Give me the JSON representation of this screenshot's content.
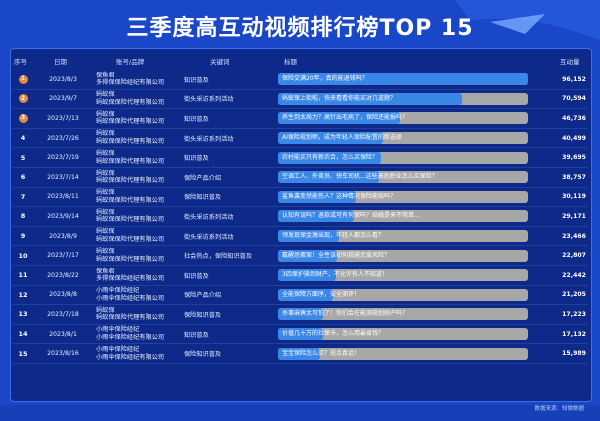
{
  "title": "三季度高互动视频排行榜TOP 15",
  "source": "数据来源：知微数据",
  "colors": {
    "background": "#1a47c8",
    "panel": "#0d2a8a",
    "bar_fill": "#3b87e8",
    "bar_track": "#a7a7a7",
    "top3_badge": "#e5893a"
  },
  "headers": {
    "rank": "序号",
    "date": "日期",
    "account": "账号/品牌",
    "keyword": "关键词",
    "topic": "标题",
    "value": "互动量"
  },
  "chart_data": {
    "type": "bar",
    "orientation": "horizontal",
    "title": "三季度高互动视频排行榜TOP 15",
    "xlim": [
      0,
      96152
    ],
    "rows": [
      {
        "rank": "1",
        "date": "2023/8/3",
        "account": [
          "保鱼君",
          "多得保保险经纪有限公司"
        ],
        "keyword": "知识普及",
        "topic": "保险交满20年，真的能退钱吗？",
        "value": 96152,
        "label": "96,152"
      },
      {
        "rank": "2",
        "date": "2023/9/7",
        "account": [
          "蚂蚁保",
          "蚂蚁保保险代理有限公司"
        ],
        "keyword": "街头采访系列活动",
        "topic": "蚂蚁保上街啦，快来看看你能买对几道题？",
        "value": 70594,
        "label": "70,594"
      },
      {
        "rank": "3",
        "date": "2023/7/13",
        "account": [
          "蚂蚁保",
          "蚂蚁保保险代理有限公司"
        ],
        "keyword": "知识普及",
        "topic": "养生到太局力？高针出毛病了，保险还能报吗？",
        "value": 46736,
        "label": "46,736"
      },
      {
        "rank": "4",
        "date": "2023/7/26",
        "account": [
          "蚂蚁保",
          "蚂蚁保保险代理有限公司"
        ],
        "keyword": "街头采访系列活动",
        "topic": "AI保险规划师，成为年轻人保险配置的新选择",
        "value": 40499,
        "label": "40,499"
      },
      {
        "rank": "5",
        "date": "2023/7/19",
        "account": [
          "蚂蚁保",
          "蚂蚁保保险代理有限公司"
        ],
        "keyword": "知识普及",
        "topic": "农村能买只有新农合，怎么买保险？",
        "value": 39695,
        "label": "39,695"
      },
      {
        "rank": "6",
        "date": "2023/7/14",
        "account": [
          "蚂蚁保",
          "蚂蚁保保险代理有限公司"
        ],
        "keyword": "保险产品介绍",
        "topic": "空调工人、外卖员、快车司机...这些高危职业怎么买保险？",
        "value": 38757,
        "label": "38,757"
      },
      {
        "rank": "7",
        "date": "2023/8/11",
        "account": [
          "蚂蚁保",
          "蚂蚁保保险代理有限公司"
        ],
        "keyword": "保险知识普及",
        "topic": "鲨鱼袭变然能伤人？这种情况保险能赔吗？",
        "value": 30119,
        "label": "30,119"
      },
      {
        "rank": "8",
        "date": "2023/9/14",
        "account": [
          "蚂蚁保",
          "蚂蚁保保险代理有限公司"
        ],
        "keyword": "街头采访系列活动",
        "topic": "认知有误吗？退款或可有何保吗？结婚是来不简单...",
        "value": 29171,
        "label": "29,171"
      },
      {
        "rank": "9",
        "date": "2023/8/9",
        "account": [
          "蚂蚁保",
          "蚂蚁保保险代理有限公司"
        ],
        "keyword": "街头采访系列活动",
        "topic": "领发现保金激出现，年轻人都怎么看？",
        "value": 23466,
        "label": "23,466"
      },
      {
        "rank": "10",
        "date": "2023/7/17",
        "account": [
          "蚂蚁保",
          "蚂蚁保保险代理有限公司"
        ],
        "keyword": "社会热点，保险知识普及",
        "topic": "戴醒恐蛋案！全性该如何规避恋爱风险？",
        "value": 22807,
        "label": "22,807"
      },
      {
        "rank": "11",
        "date": "2023/8/22",
        "account": [
          "保鱼君",
          "多得保保险经纪有限公司"
        ],
        "keyword": "知识普及",
        "topic": "3四保护操到财产，不允许有人不知道！",
        "value": 22442,
        "label": "22,442"
      },
      {
        "rank": "12",
        "date": "2023/8/8",
        "account": [
          "小雨伞保险经纪",
          "小雨伞保险经纪有限公司"
        ],
        "keyword": "保险产品介绍",
        "topic": "全能保障方面序，安全测评！",
        "value": 21205,
        "label": "21,205"
      },
      {
        "rank": "13",
        "date": "2023/7/18",
        "account": [
          "蚂蚁保",
          "蚂蚁保保险代理有限公司"
        ],
        "keyword": "保险知识普及",
        "topic": "杀事麻痹太可怕了！你们会在能测规划财产吗？",
        "value": 17223,
        "label": "17,223"
      },
      {
        "rank": "14",
        "date": "2023/8/1",
        "account": [
          "小雨伞保险经纪",
          "小雨伞保险经纪有限公司"
        ],
        "keyword": "知识普及",
        "topic": "价值几十万的社保卡，怎么用最省钱？",
        "value": 17132,
        "label": "17,132"
      },
      {
        "rank": "15",
        "date": "2023/8/16",
        "account": [
          "小雨伞保险经纪",
          "小雨伞保险经纪有限公司"
        ],
        "keyword": "保险知识普及",
        "topic": "宝宝保险怎么买？说点真话！",
        "value": 15989,
        "label": "15,989"
      }
    ]
  }
}
